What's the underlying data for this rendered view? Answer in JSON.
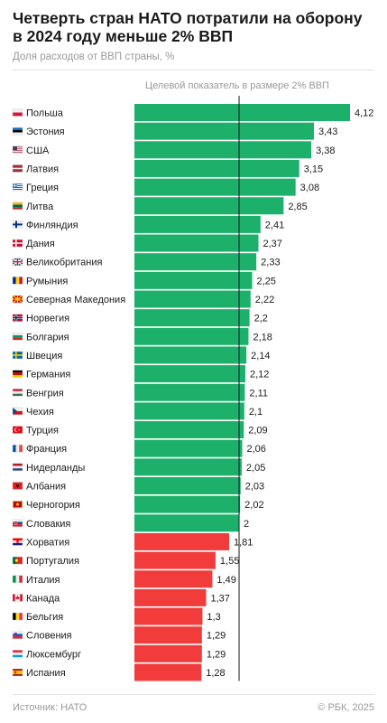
{
  "header": {
    "title": "Четверть стран НАТО потратили на оборону в 2024 году меньше 2% ВВП",
    "subtitle": "Доля расходов от ВВП страны, %"
  },
  "footer": {
    "source": "Источник: НАТО",
    "copyright": "© РБК, 2025"
  },
  "colors": {
    "above_target": "#1db06a",
    "below_target": "#f23c3c",
    "target_line": "#1a1a1a"
  },
  "chart_data": {
    "type": "bar",
    "orientation": "horizontal",
    "title": "Четверть стран НАТО потратили на оборону в 2024 году меньше 2% ВВП",
    "subtitle": "Доля расходов от ВВП страны, %",
    "target_value": 2,
    "target_label": "Целевой показатель в размере 2% ВВП",
    "xlim": [
      0,
      4.12
    ],
    "categories": [
      "Польша",
      "Эстония",
      "США",
      "Латвия",
      "Греция",
      "Литва",
      "Финляндия",
      "Дания",
      "Великобритания",
      "Румыния",
      "Северная Македония",
      "Норвегия",
      "Болгария",
      "Швеция",
      "Германия",
      "Венгрия",
      "Чехия",
      "Турция",
      "Франция",
      "Нидерланды",
      "Албания",
      "Черногория",
      "Словакия",
      "Хорватия",
      "Португалия",
      "Италия",
      "Канада",
      "Бельгия",
      "Словения",
      "Люксембург",
      "Испания"
    ],
    "values": [
      4.12,
      3.43,
      3.38,
      3.15,
      3.08,
      2.85,
      2.41,
      2.37,
      2.33,
      2.25,
      2.22,
      2.2,
      2.18,
      2.14,
      2.12,
      2.11,
      2.1,
      2.09,
      2.06,
      2.05,
      2.03,
      2.02,
      2,
      1.81,
      1.55,
      1.49,
      1.37,
      1.3,
      1.29,
      1.29,
      1.28
    ],
    "value_labels": [
      "4,12",
      "3,43",
      "3,38",
      "3,15",
      "3,08",
      "2,85",
      "2,41",
      "2,37",
      "2,33",
      "2,25",
      "2,22",
      "2,2",
      "2,18",
      "2,14",
      "2,12",
      "2,11",
      "2,1",
      "2,09",
      "2,06",
      "2,05",
      "2,03",
      "2,02",
      "2",
      "1,81",
      "1,55",
      "1,49",
      "1,37",
      "1,3",
      "1,29",
      "1,29",
      "1,28"
    ],
    "flag_icons": [
      "poland-flag-icon",
      "estonia-flag-icon",
      "usa-flag-icon",
      "latvia-flag-icon",
      "greece-flag-icon",
      "lithuania-flag-icon",
      "finland-flag-icon",
      "denmark-flag-icon",
      "uk-flag-icon",
      "romania-flag-icon",
      "north-macedonia-flag-icon",
      "norway-flag-icon",
      "bulgaria-flag-icon",
      "sweden-flag-icon",
      "germany-flag-icon",
      "hungary-flag-icon",
      "czechia-flag-icon",
      "turkey-flag-icon",
      "france-flag-icon",
      "netherlands-flag-icon",
      "albania-flag-icon",
      "montenegro-flag-icon",
      "slovakia-flag-icon",
      "croatia-flag-icon",
      "portugal-flag-icon",
      "italy-flag-icon",
      "canada-flag-icon",
      "belgium-flag-icon",
      "slovenia-flag-icon",
      "luxembourg-flag-icon",
      "spain-flag-icon"
    ],
    "grid": false,
    "legend": "none"
  }
}
